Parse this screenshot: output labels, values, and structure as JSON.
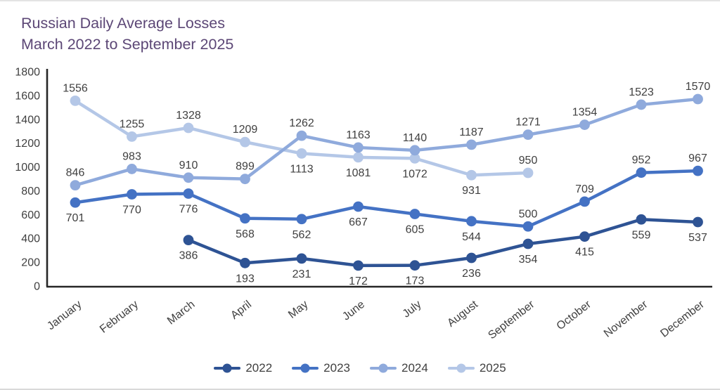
{
  "chart_data": {
    "type": "line",
    "title": "Russian Daily Average Losses",
    "subtitle": "March 2022 to September 2025",
    "categories": [
      "January",
      "February",
      "March",
      "April",
      "May",
      "June",
      "July",
      "August",
      "September",
      "October",
      "November",
      "December"
    ],
    "ylim": [
      0,
      1800
    ],
    "ytick_step": 200,
    "ytick_labels": [
      "0",
      "200",
      "400",
      "600",
      "800",
      "1000",
      "1200",
      "1400",
      "1600",
      "1800"
    ],
    "grid": false,
    "legend_position": "bottom",
    "title_color": "#5c4776",
    "axis_color": "#262626",
    "tick_label_color": "#404040",
    "data_label_color": "#404040",
    "series": [
      {
        "name": "2022",
        "color": "#2e5394",
        "values": [
          null,
          null,
          386,
          193,
          231,
          172,
          173,
          236,
          354,
          415,
          559,
          537
        ],
        "label_side": [
          null,
          null,
          "below",
          "below",
          "below",
          "below",
          "below",
          "below",
          "below",
          "below",
          "below",
          "below"
        ]
      },
      {
        "name": "2023",
        "color": "#4472c4",
        "values": [
          701,
          770,
          776,
          568,
          562,
          667,
          605,
          544,
          500,
          709,
          952,
          967
        ],
        "label_side": [
          "below",
          "below",
          "below",
          "below",
          "below",
          "below",
          "below",
          "below",
          "above",
          "above",
          "above",
          "above"
        ]
      },
      {
        "name": "2024",
        "color": "#8faadc",
        "values": [
          846,
          983,
          910,
          899,
          1262,
          1163,
          1140,
          1187,
          1271,
          1354,
          1523,
          1570
        ],
        "label_side": [
          "above",
          "above",
          "above",
          "above",
          "above",
          "above",
          "above",
          "above",
          "above",
          "above",
          "above",
          "above"
        ]
      },
      {
        "name": "2025",
        "color": "#b4c7e7",
        "values": [
          1556,
          1255,
          1328,
          1209,
          1113,
          1081,
          1072,
          931,
          950,
          null,
          null,
          null
        ],
        "label_side": [
          "above",
          "above",
          "above",
          "above",
          "below",
          "below",
          "below",
          "below",
          "above",
          null,
          null,
          null
        ]
      }
    ]
  }
}
